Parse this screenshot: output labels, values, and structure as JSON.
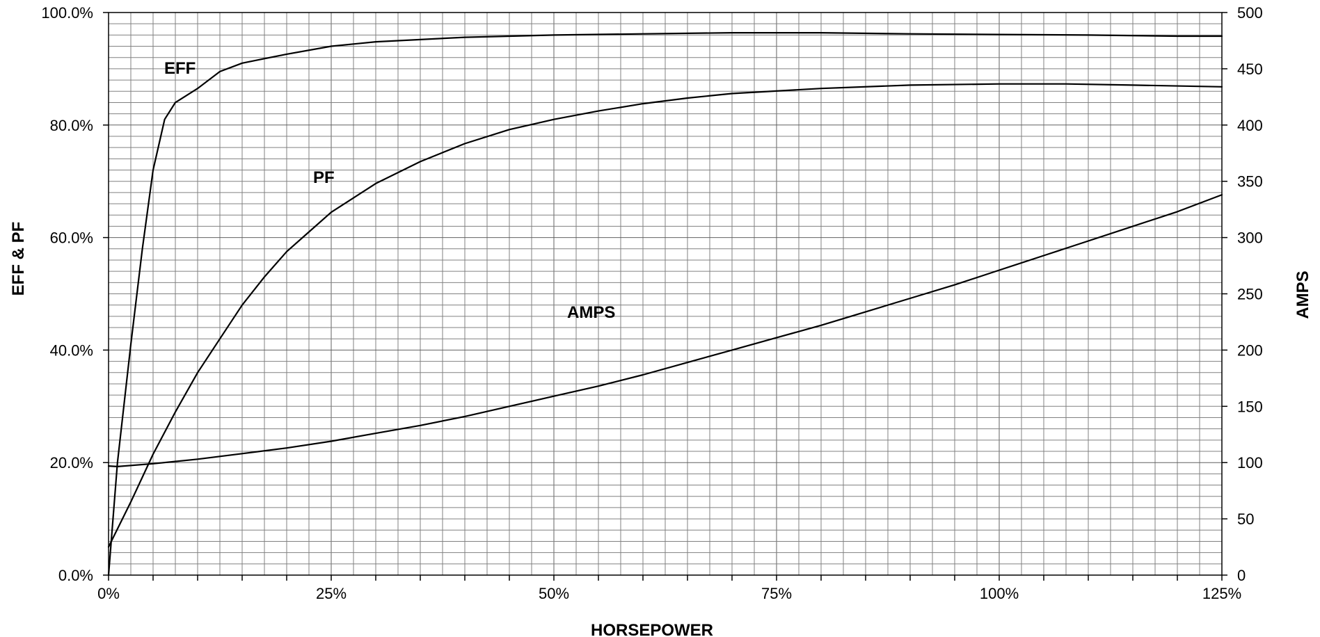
{
  "chart_data": {
    "type": "line",
    "xlabel": "HORSEPOWER",
    "ylabel_left": "EFF & PF",
    "ylabel_right": "AMPS",
    "xlim": [
      0,
      125
    ],
    "ylim_left": [
      0,
      100
    ],
    "ylim_right": [
      0,
      500
    ],
    "grid": true,
    "x_ticks": [
      "0%",
      "25%",
      "50%",
      "75%",
      "100%",
      "125%"
    ],
    "y_left_ticks": [
      "0.0%",
      "20.0%",
      "40.0%",
      "60.0%",
      "80.0%",
      "100.0%"
    ],
    "y_right_ticks": [
      "0",
      "50",
      "100",
      "150",
      "200",
      "250",
      "300",
      "350",
      "400",
      "450",
      "500"
    ],
    "series": [
      {
        "name": "EFF",
        "axis": "left",
        "x": [
          0,
          1,
          2.5,
          3.8,
          5,
          6.3,
          7.5,
          10,
          12.5,
          15,
          17.5,
          20,
          25,
          30,
          40,
          50,
          60,
          70,
          80,
          90,
          100,
          110,
          120,
          125
        ],
        "y": [
          0,
          20,
          41,
          58,
          72,
          81,
          84,
          86.5,
          89.5,
          91,
          91.8,
          92.6,
          94.0,
          94.8,
          95.6,
          96.0,
          96.2,
          96.4,
          96.4,
          96.2,
          96.1,
          96.0,
          95.8,
          95.8
        ]
      },
      {
        "name": "PF",
        "axis": "left",
        "x": [
          0,
          2.5,
          5,
          7.5,
          10,
          12.5,
          15,
          17.5,
          20,
          22.5,
          25,
          30,
          35,
          40,
          45,
          50,
          55,
          60,
          65,
          70,
          80,
          90,
          100,
          107.5,
          115,
          125
        ],
        "y": [
          5,
          13,
          21.5,
          29,
          36,
          42,
          48,
          53,
          57.5,
          61,
          64.5,
          69.6,
          73.5,
          76.7,
          79.2,
          81.0,
          82.5,
          83.8,
          84.8,
          85.6,
          86.5,
          87.1,
          87.3,
          87.3,
          87.1,
          86.8
        ]
      },
      {
        "name": "AMPS",
        "axis": "right",
        "x": [
          0,
          1,
          5,
          10,
          15,
          20,
          25,
          30,
          35,
          40,
          45,
          50,
          55,
          60,
          65,
          70,
          75,
          80,
          85,
          90,
          95,
          100,
          105,
          110,
          115,
          120,
          125
        ],
        "y": [
          97,
          96.5,
          99,
          103,
          108,
          113,
          119,
          126,
          133,
          141,
          150,
          159,
          168,
          178,
          189,
          200,
          211,
          222,
          234,
          246,
          258,
          271,
          284,
          297,
          310,
          323,
          338
        ]
      }
    ]
  }
}
